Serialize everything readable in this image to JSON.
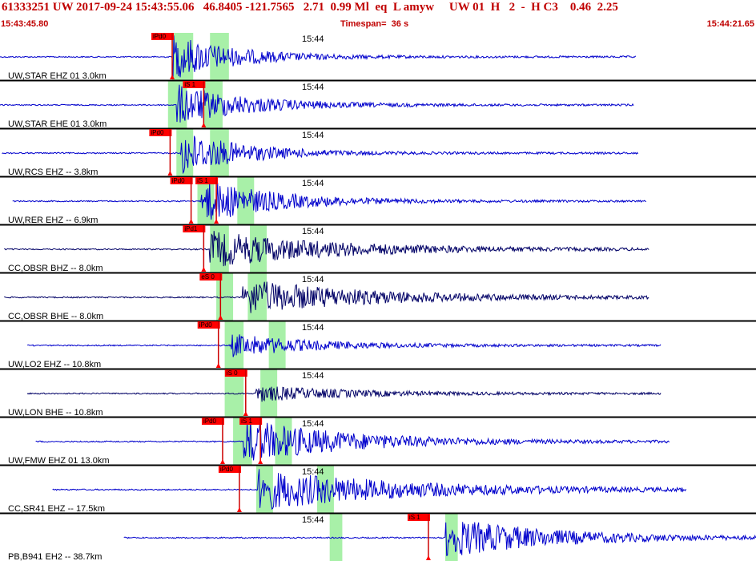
{
  "header": {
    "title": "61333251 UW 2017-09-24 15:43:55.06   46.8405 -121.7565   2.71  0.99 Ml  eq  L amyw     UW 01  H   2  -  H C3    0.46  2.25",
    "start_time": "15:43:45.80",
    "timespan": "Timespan=  36 s",
    "end_time": "15:44:21.65"
  },
  "time_marker_label": "15:44",
  "colors": {
    "header_text": "#c00000",
    "trace": "#0000cc",
    "trace_dark": "#000066",
    "pick_fill": "#ff0000",
    "window_fill": "#a8f0a8",
    "separator": "#000000",
    "label_text": "#000000"
  },
  "panels": [
    {
      "label": "UW,STAR EHZ 01 3.0km",
      "color": "#0000cc",
      "picks": [
        {
          "text": "iPd0",
          "t": 8.2
        }
      ],
      "windows": [
        [
          8.2,
          9.2
        ],
        [
          10.0,
          10.9
        ]
      ],
      "trace_start": 0.0,
      "trace_end": 30.3,
      "onset": 8.2,
      "amp": 1.0,
      "decay": 3.0
    },
    {
      "label": "UW,STAR EHE 01 3.0km",
      "color": "#0000cc",
      "picks": [
        {
          "text": "iS 1",
          "t": 9.7
        }
      ],
      "windows": [
        [
          8.0,
          8.9
        ],
        [
          9.7,
          10.6
        ]
      ],
      "trace_start": 0.0,
      "trace_end": 30.2,
      "onset": 8.4,
      "amp": 0.9,
      "decay": 3.5
    },
    {
      "label": "UW,RCS EHZ -- 3.8km",
      "color": "#0000cc",
      "picks": [
        {
          "text": "iPd0",
          "t": 8.1
        }
      ],
      "windows": [
        [
          8.4,
          9.2
        ],
        [
          10.0,
          10.9
        ]
      ],
      "trace_start": 0.1,
      "trace_end": 30.4,
      "onset": 8.6,
      "amp": 1.0,
      "decay": 3.0
    },
    {
      "label": "UW,RER EHZ -- 6.9km",
      "color": "#0000cc",
      "picks": [
        {
          "text": "iPd0",
          "t": 9.1
        },
        {
          "text": "iS 1",
          "t": 10.3
        }
      ],
      "windows": [
        [
          9.4,
          10.2
        ],
        [
          11.3,
          12.1
        ]
      ],
      "trace_start": 0.6,
      "trace_end": 30.8,
      "onset": 9.6,
      "amp": 1.0,
      "decay": 3.5
    },
    {
      "label": "CC,OBSR BHZ -- 8.0km",
      "color": "#000066",
      "picks": [
        {
          "text": "iPd1",
          "t": 9.7
        }
      ],
      "windows": [
        [
          10.0,
          10.9
        ],
        [
          11.9,
          12.7
        ]
      ],
      "trace_start": 0.2,
      "trace_end": 30.9,
      "onset": 10.0,
      "amp": 0.8,
      "decay": 6.0
    },
    {
      "label": "CC,OBSR BHE -- 8.0km",
      "color": "#000066",
      "picks": [
        {
          "text": "eS 0",
          "t": 10.5
        }
      ],
      "windows": [
        [
          10.3,
          11.1
        ],
        [
          11.8,
          12.7
        ]
      ],
      "trace_start": 0.2,
      "trace_end": 30.9,
      "onset": 11.5,
      "amp": 0.8,
      "decay": 6.0
    },
    {
      "label": "UW,LO2 EHZ -- 10.8km",
      "color": "#0000cc",
      "picks": [
        {
          "text": "iPd0",
          "t": 10.4
        }
      ],
      "windows": [
        [
          10.7,
          11.6
        ],
        [
          12.8,
          13.6
        ]
      ],
      "trace_start": 1.3,
      "trace_end": 31.5,
      "onset": 11.0,
      "amp": 0.5,
      "decay": 4.0
    },
    {
      "label": "UW,LON BHE -- 10.8km",
      "color": "#000066",
      "picks": [
        {
          "text": "iS 0",
          "t": 11.7
        }
      ],
      "windows": [
        [
          10.7,
          11.6
        ],
        [
          12.4,
          13.2
        ]
      ],
      "trace_start": 1.3,
      "trace_end": 31.5,
      "onset": 12.2,
      "amp": 0.35,
      "decay": 4.5
    },
    {
      "label": "UW,FMW EHZ 01 13.0km",
      "color": "#0000cc",
      "picks": [
        {
          "text": "iPd0",
          "t": 10.6
        },
        {
          "text": "iS 1",
          "t": 12.4
        }
      ],
      "windows": [
        [
          11.1,
          12.0
        ],
        [
          13.1,
          13.9
        ]
      ],
      "trace_start": 1.7,
      "trace_end": 31.9,
      "onset": 11.6,
      "amp": 1.0,
      "decay": 5.0
    },
    {
      "label": "CC,SR41 EHZ -- 17.5km",
      "color": "#0000cc",
      "picks": [
        {
          "text": "iPd0",
          "t": 11.4
        }
      ],
      "windows": [
        [
          12.2,
          13.0
        ],
        [
          15.1,
          15.9
        ]
      ],
      "trace_start": 2.5,
      "trace_end": 32.7,
      "onset": 12.3,
      "amp": 0.9,
      "decay": 7.0
    },
    {
      "label": "PB,B941 EH2 -- 38.7km",
      "color": "#0000cc",
      "picks": [
        {
          "text": "iS 1",
          "t": 20.4
        }
      ],
      "windows": [
        [
          15.7,
          16.3
        ],
        [
          21.2,
          21.8
        ]
      ],
      "trace_start": 5.9,
      "trace_end": 36.0,
      "onset": 21.2,
      "amp": 0.9,
      "decay": 5.0
    }
  ]
}
